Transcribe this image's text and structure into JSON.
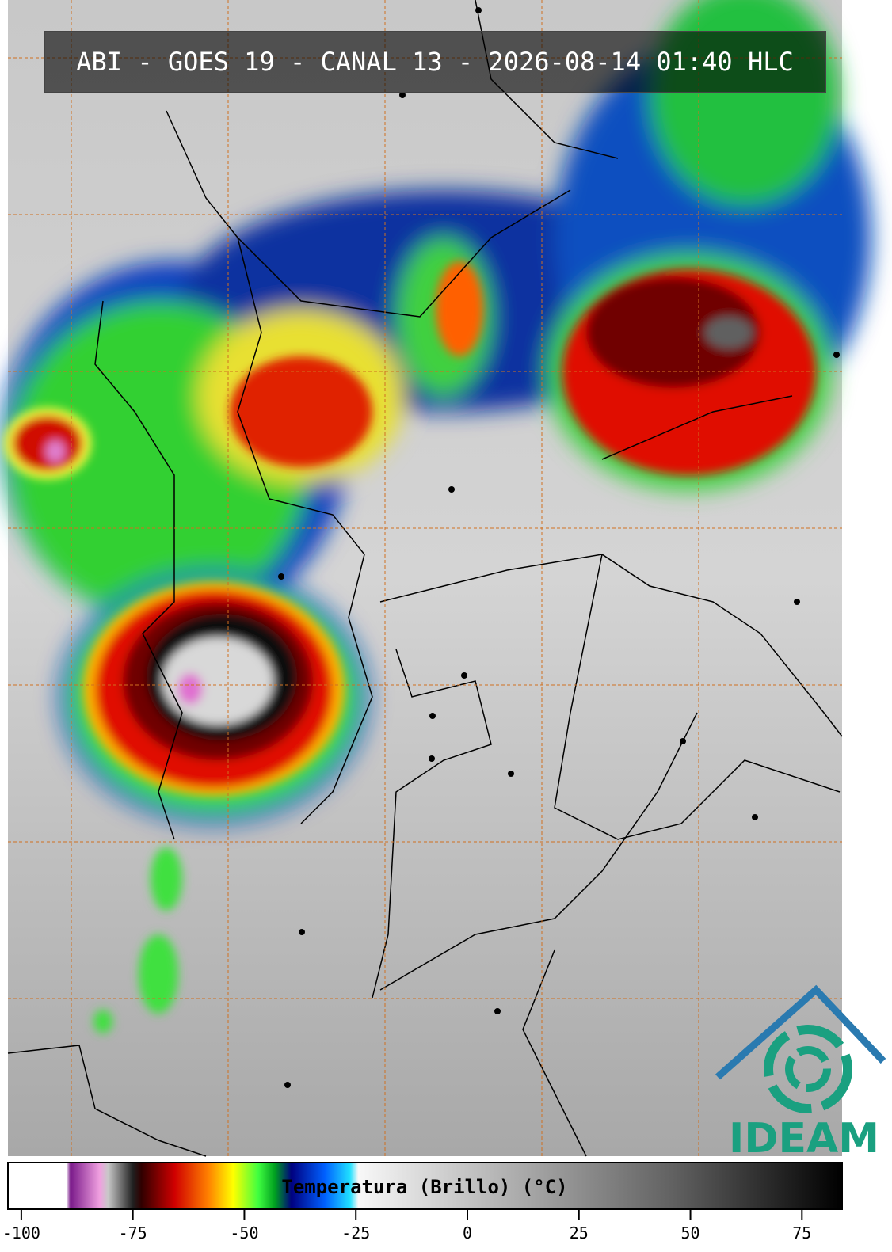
{
  "header": {
    "title": "ABI - GOES 19 - CANAL 13 - 2026-08-14 01:40 HLC"
  },
  "colorbar": {
    "label": "Temperatura (Brillo) (°C)",
    "lim": [
      -103,
      84
    ],
    "ticks": [
      -100,
      -75,
      -50,
      -25,
      0,
      25,
      50,
      75
    ]
  },
  "logo": {
    "text": "IDEAM"
  }
}
